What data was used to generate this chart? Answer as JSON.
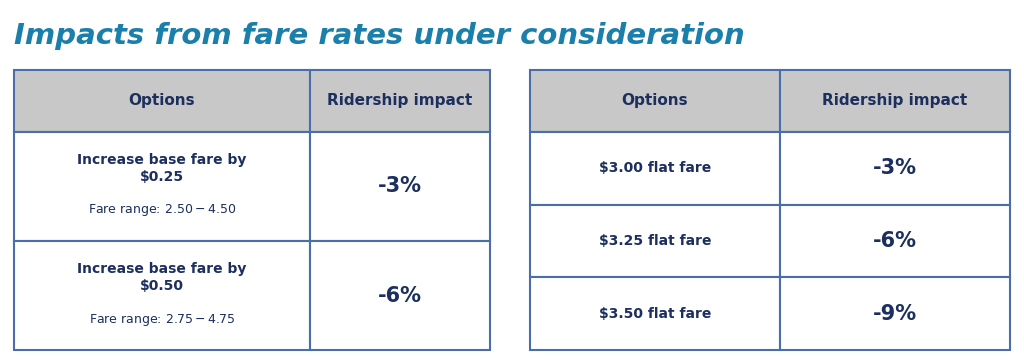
{
  "title": "Impacts from fare rates under consideration",
  "title_color": "#1a7faa",
  "title_fontsize": 21,
  "header_bg": "#c8c8c8",
  "header_text_color": "#1c2f5e",
  "row_bg": "#ffffff",
  "row_text_color": "#1c2f5e",
  "border_color": "#4a6fa8",
  "table1": {
    "headers": [
      "Options",
      "Ridership impact"
    ],
    "rows": [
      {
        "option_bold": "Increase base fare by\n$0.25",
        "option_sub": "Fare range: $2.50-$4.50",
        "impact": "-3%"
      },
      {
        "option_bold": "Increase base fare by\n$0.50",
        "option_sub": "Fare range: $2.75-$4.75",
        "impact": "-6%"
      }
    ]
  },
  "table2": {
    "headers": [
      "Options",
      "Ridership impact"
    ],
    "rows": [
      {
        "option": "$3.00 flat fare",
        "impact": "-3%"
      },
      {
        "option": "$3.25 flat fare",
        "impact": "-6%"
      },
      {
        "option": "$3.50 flat fare",
        "impact": "-9%"
      }
    ]
  }
}
